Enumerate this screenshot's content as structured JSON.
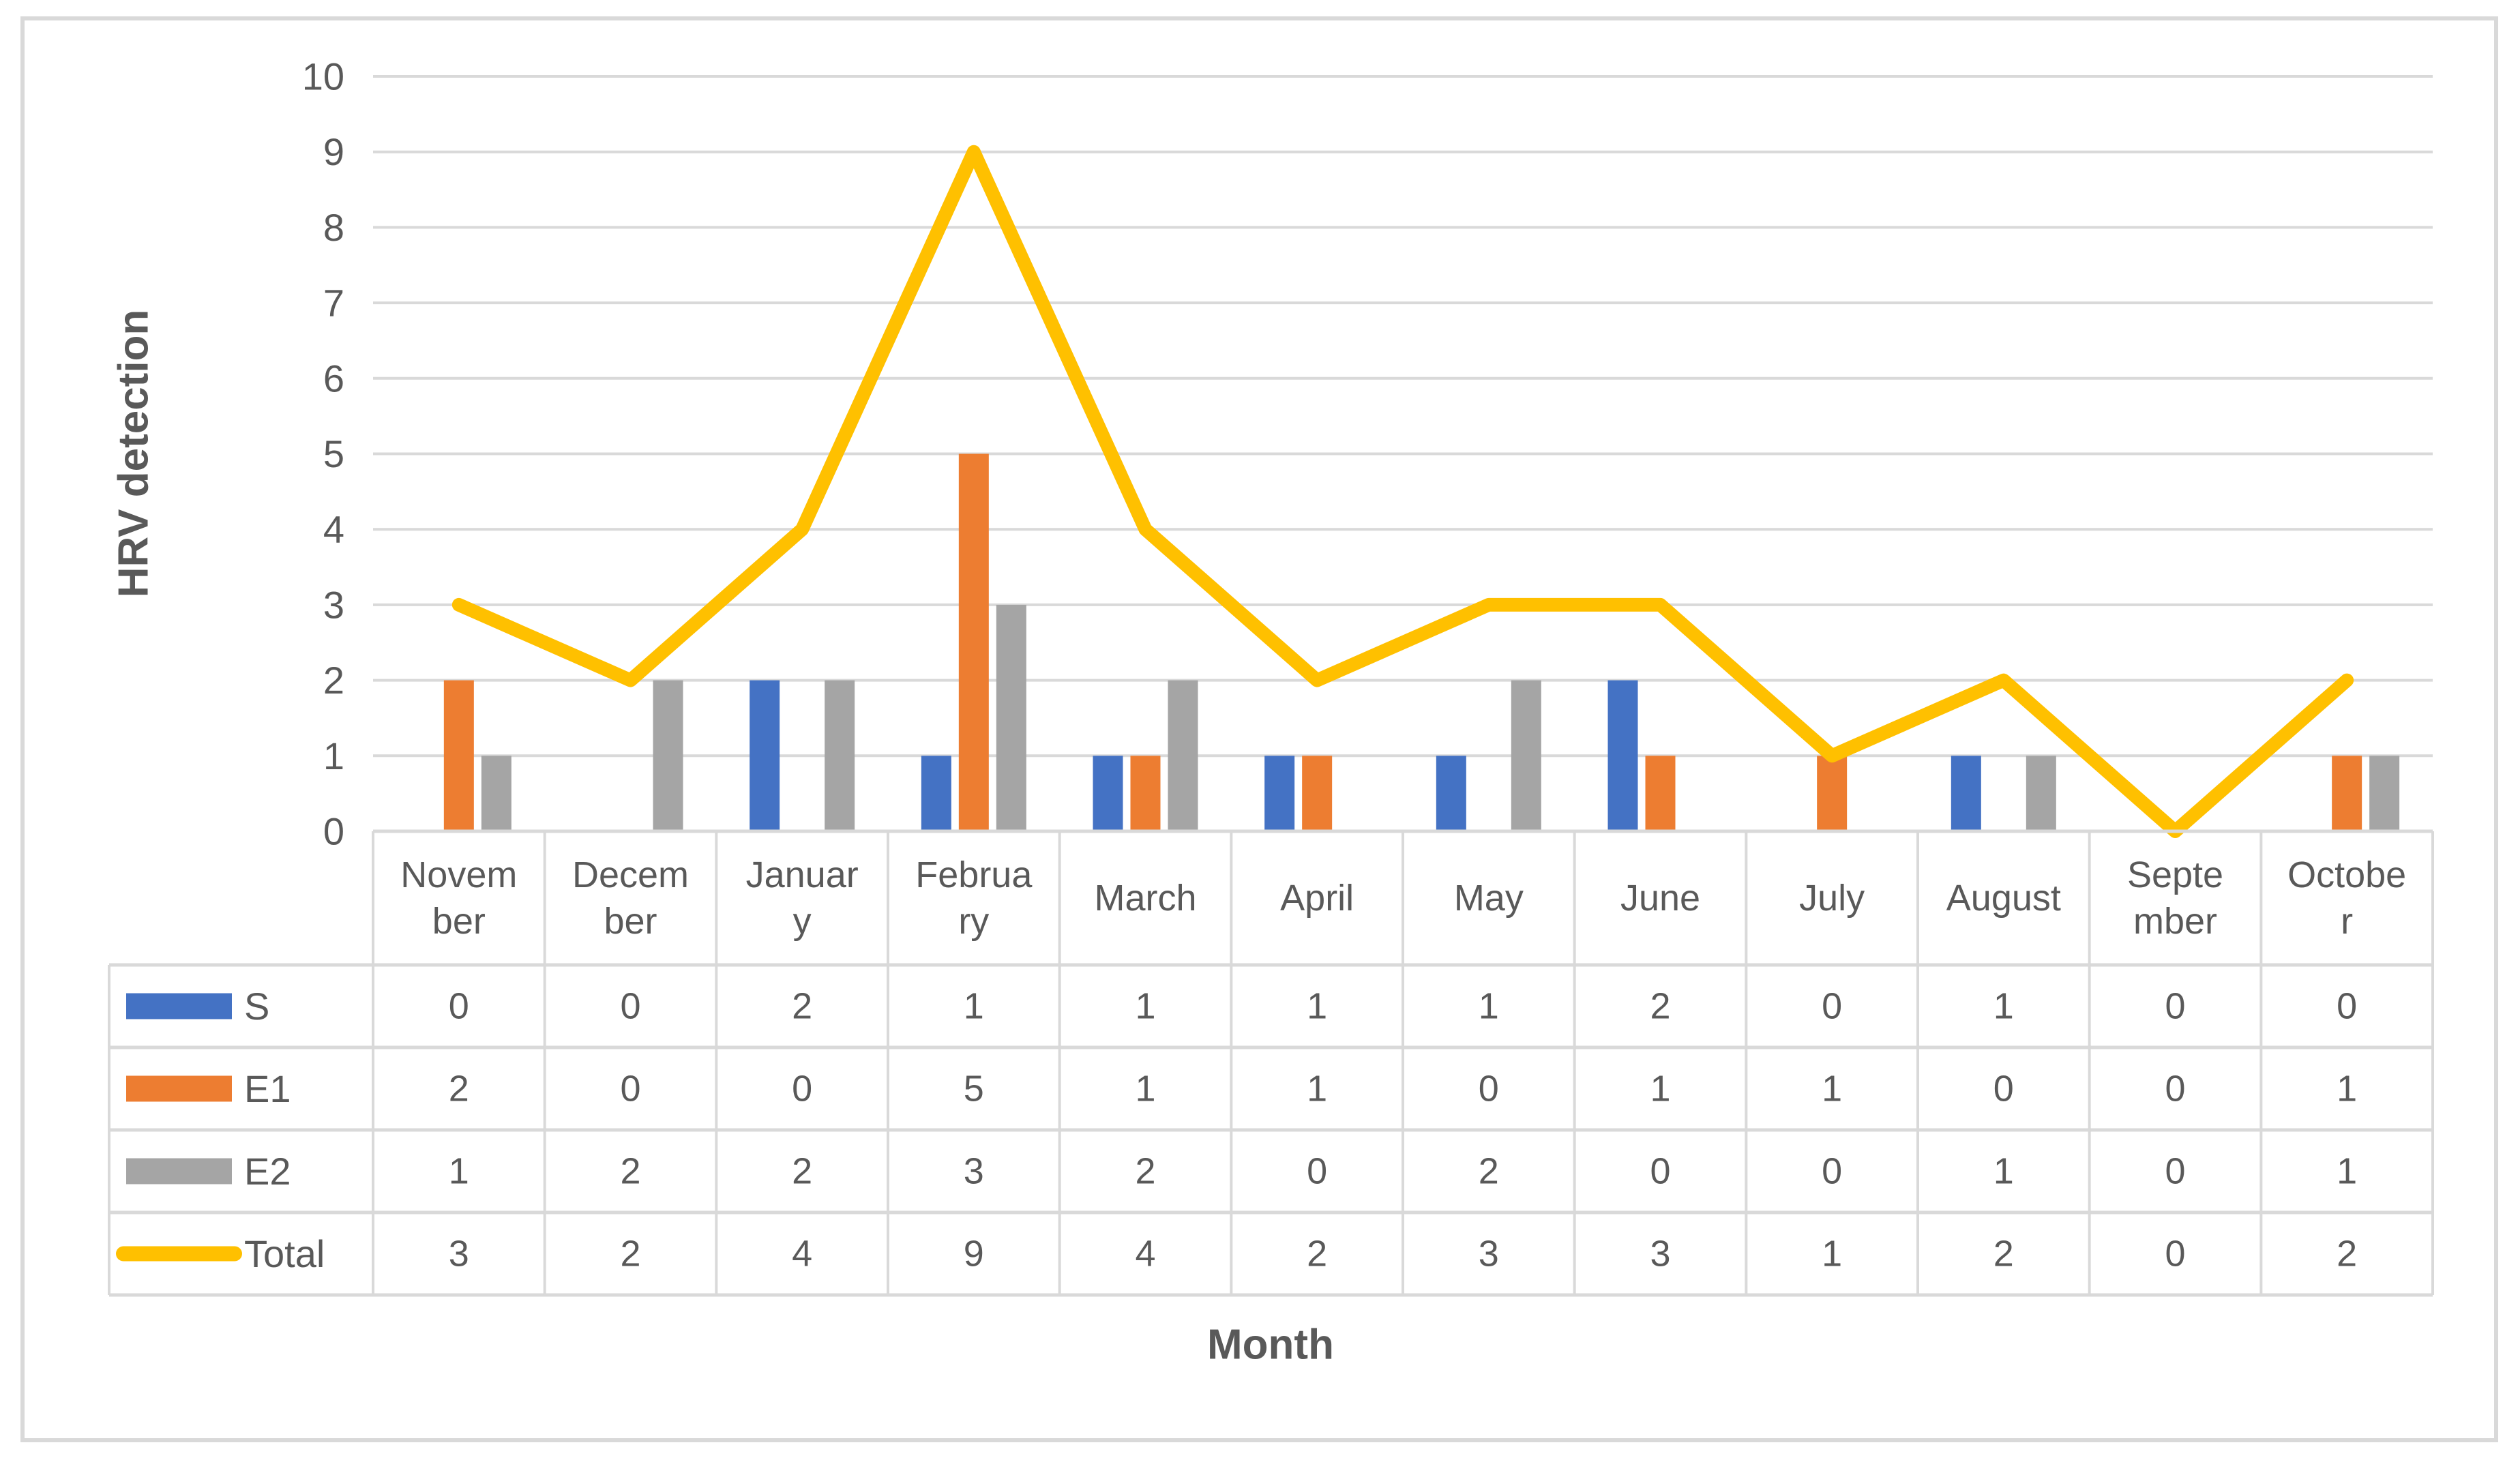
{
  "figure": {
    "background": "#FFFFFF",
    "frame_color": "#D9D9D9",
    "grid_color": "#D9D9D9",
    "table_border_color": "#D9D9D9",
    "text_color": "#595959"
  },
  "chart_data": {
    "type": "combo-bar-line",
    "xlabel": "Month",
    "ylabel": "HRV detection",
    "ylim": [
      0,
      10
    ],
    "y_tick_step": 1,
    "grid": true,
    "legend_position": "data-table-left-keys",
    "categories": [
      "November",
      "December",
      "January",
      "February",
      "March",
      "April",
      "May",
      "June",
      "July",
      "August",
      "September",
      "October"
    ],
    "category_wrapped_labels": [
      [
        "Novem",
        "ber"
      ],
      [
        "Decem",
        "ber"
      ],
      [
        "Januar",
        "y"
      ],
      [
        "Februa",
        "ry"
      ],
      [
        "March"
      ],
      [
        "April"
      ],
      [
        "May"
      ],
      [
        "June"
      ],
      [
        "July"
      ],
      [
        "August"
      ],
      [
        "Septe",
        "mber"
      ],
      [
        "Octobe",
        "r"
      ]
    ],
    "series": [
      {
        "name": "S",
        "type": "bar",
        "color": "#4472C4",
        "values": [
          0,
          0,
          2,
          1,
          1,
          1,
          1,
          2,
          0,
          1,
          0,
          0
        ]
      },
      {
        "name": "E1",
        "type": "bar",
        "color": "#ED7D31",
        "values": [
          2,
          0,
          0,
          5,
          1,
          1,
          0,
          1,
          1,
          0,
          0,
          1
        ]
      },
      {
        "name": "E2",
        "type": "bar",
        "color": "#A5A5A5",
        "values": [
          1,
          2,
          2,
          3,
          2,
          0,
          2,
          0,
          0,
          1,
          0,
          1
        ]
      },
      {
        "name": "Total",
        "type": "line",
        "color": "#FFC000",
        "values": [
          3,
          2,
          4,
          9,
          4,
          2,
          3,
          3,
          1,
          2,
          0,
          2
        ]
      }
    ]
  }
}
